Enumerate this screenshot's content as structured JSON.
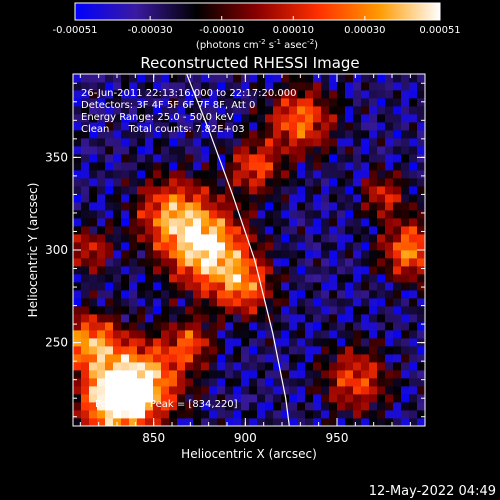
{
  "chart_data": {
    "type": "heatmap",
    "title": "Reconstructed RHESSI Image",
    "xlabel": "Heliocentric X (arcsec)",
    "ylabel": "Heliocentric Y (arcsec)",
    "xlim": [
      806,
      998
    ],
    "ylim": [
      205,
      395
    ],
    "x_ticks": [
      850,
      900,
      950
    ],
    "y_ticks": [
      250,
      300,
      350
    ],
    "colorbar": {
      "min": -0.00051,
      "max": 0.00051,
      "ticks": [
        "-0.00051",
        "-0.00030",
        "-0.00010",
        "0.00010",
        "0.00030",
        "0.00051"
      ],
      "unit_label": "(photons cm",
      "unit_exp1": "-2",
      "unit_mid": " s",
      "unit_exp2": "-1",
      "unit_mid2": " asec",
      "unit_exp3": "-2",
      "unit_end": ")",
      "colormap_stops": [
        "#0000ff",
        "#3a1aa0",
        "#000000",
        "#8b0000",
        "#ff3000",
        "#ff9a00",
        "#ffffff"
      ]
    },
    "annotations": [
      "26-Jun-2011 22:13:16.000 to 22:17:20.000",
      "Detectors: 3F 4F 5F 6F 7F 8F, Att 0",
      "Energy Range: 25.0 - 50.0 keV",
      "Clean      Total counts: 7.82E+03"
    ],
    "peak_label": "Position of Peak = [834,220]",
    "peak": [
      834,
      220
    ],
    "limb_curve": [
      [
        868,
        395
      ],
      [
        880,
        365
      ],
      [
        893,
        330
      ],
      [
        905,
        295
      ],
      [
        915,
        255
      ],
      [
        922,
        220
      ],
      [
        924,
        205
      ]
    ],
    "hot_regions": [
      {
        "x": 828,
        "y": 218,
        "radius": 18,
        "intensity": 1.0
      },
      {
        "x": 845,
        "y": 230,
        "radius": 22,
        "intensity": 0.85
      },
      {
        "x": 815,
        "y": 250,
        "radius": 16,
        "intensity": 0.8
      },
      {
        "x": 880,
        "y": 300,
        "radius": 22,
        "intensity": 0.95
      },
      {
        "x": 860,
        "y": 320,
        "radius": 20,
        "intensity": 0.7
      },
      {
        "x": 900,
        "y": 280,
        "radius": 16,
        "intensity": 0.6
      },
      {
        "x": 930,
        "y": 370,
        "radius": 18,
        "intensity": 0.7
      },
      {
        "x": 905,
        "y": 345,
        "radius": 14,
        "intensity": 0.6
      },
      {
        "x": 990,
        "y": 300,
        "radius": 16,
        "intensity": 0.75
      },
      {
        "x": 960,
        "y": 230,
        "radius": 18,
        "intensity": 0.6
      },
      {
        "x": 815,
        "y": 300,
        "radius": 12,
        "intensity": 0.5
      },
      {
        "x": 870,
        "y": 250,
        "radius": 12,
        "intensity": 0.55
      },
      {
        "x": 975,
        "y": 330,
        "radius": 12,
        "intensity": 0.5
      }
    ]
  },
  "footer": {
    "timestamp": "12-May-2022 04:49"
  }
}
